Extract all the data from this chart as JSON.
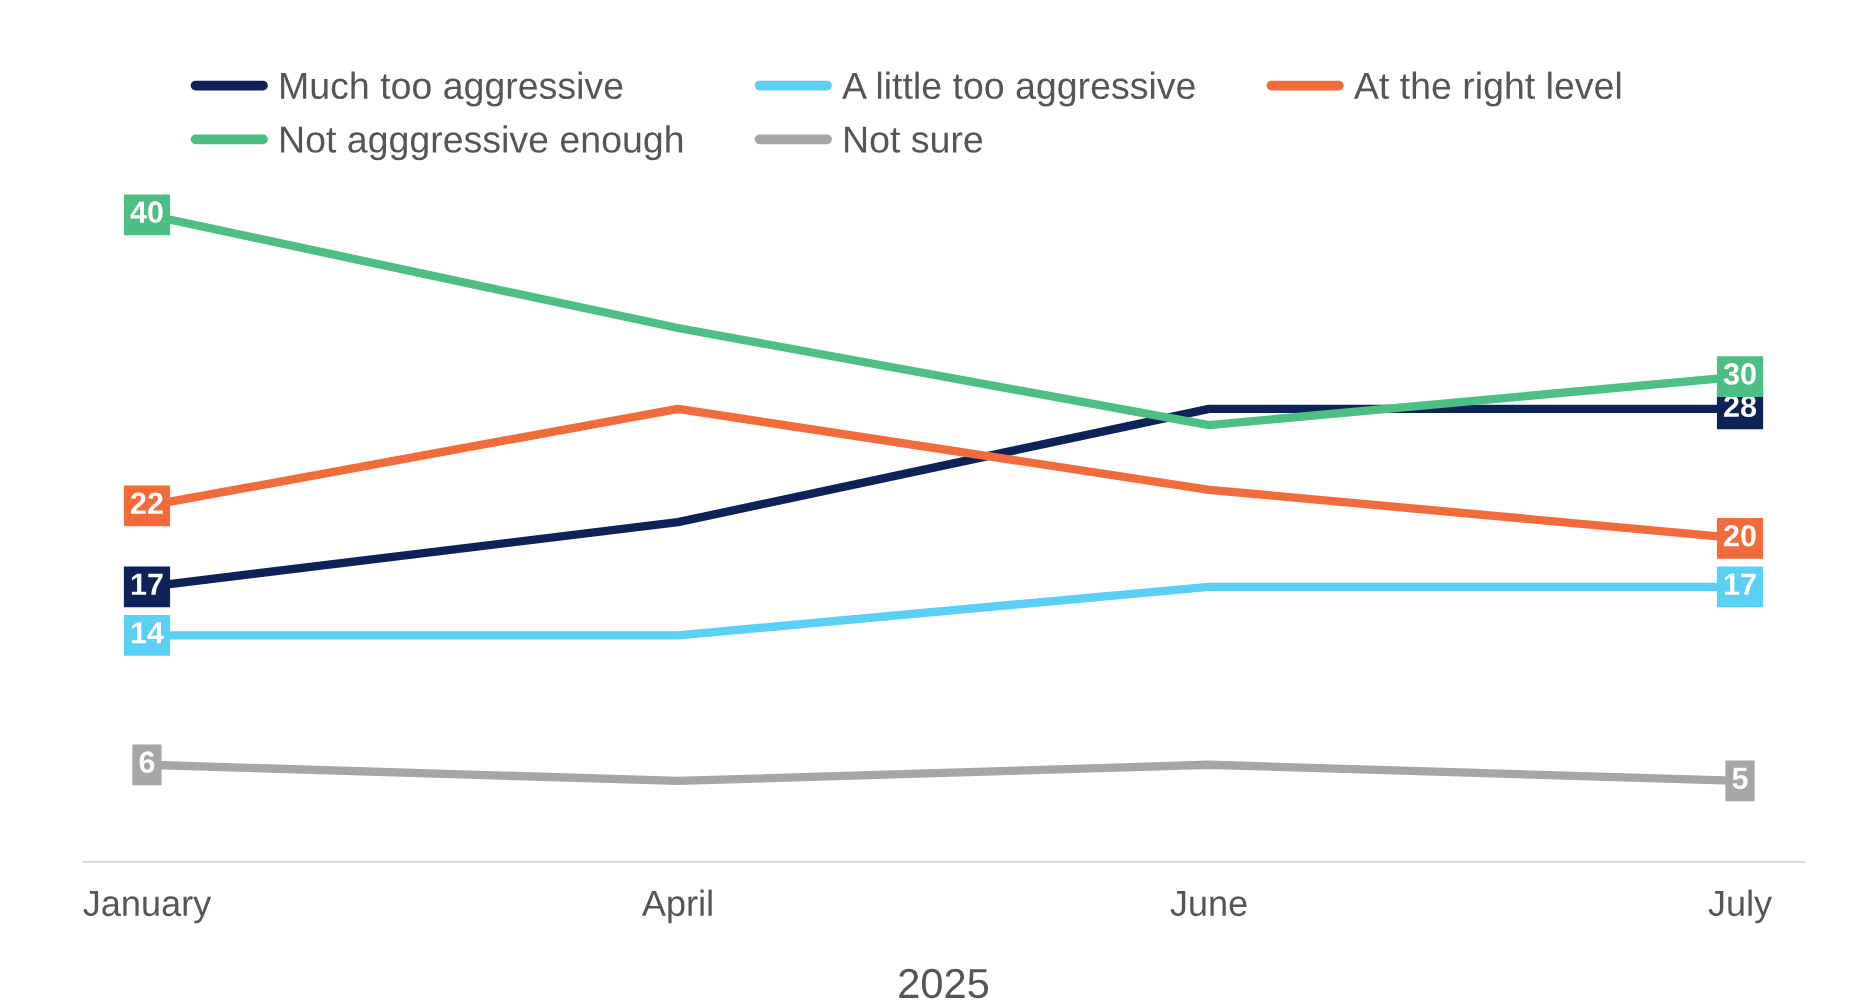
{
  "chart_data": {
    "type": "line",
    "xlabel": "2025",
    "categories": [
      "January",
      "April",
      "June",
      "July"
    ],
    "series": [
      {
        "name": "Much too aggressive",
        "color": "#0d2357",
        "values": [
          17,
          21,
          28,
          28
        ],
        "value_labels": [
          "17",
          null,
          null,
          "28"
        ]
      },
      {
        "name": "A little too aggressive",
        "color": "#5bd0f5",
        "values": [
          14,
          14,
          17,
          17
        ],
        "value_labels": [
          "14",
          null,
          null,
          "17"
        ]
      },
      {
        "name": "At the right level",
        "color": "#f26b3a",
        "values": [
          22,
          28,
          23,
          20
        ],
        "value_labels": [
          "22",
          null,
          null,
          "20"
        ]
      },
      {
        "name": "Not agggressive enough",
        "color": "#4dbf85",
        "values": [
          40,
          33,
          27,
          30
        ],
        "value_labels": [
          "40",
          null,
          null,
          "30"
        ]
      },
      {
        "name": "Not sure",
        "color": "#a6a6a6",
        "values": [
          6,
          5,
          6,
          5
        ],
        "value_labels": [
          "6",
          null,
          null,
          "5"
        ]
      }
    ],
    "grid": false,
    "legend": "top left",
    "line_style": "solid"
  }
}
